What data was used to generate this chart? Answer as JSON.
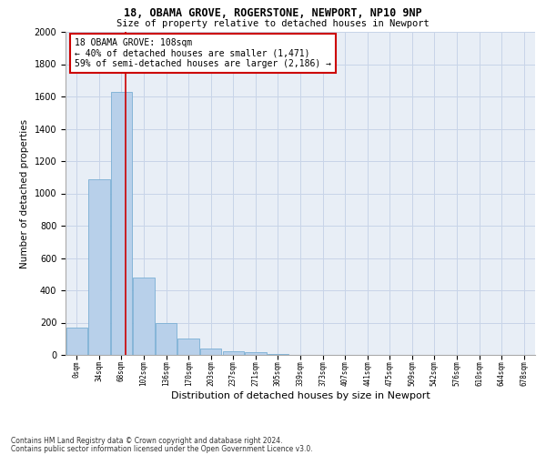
{
  "title1": "18, OBAMA GROVE, ROGERSTONE, NEWPORT, NP10 9NP",
  "title2": "Size of property relative to detached houses in Newport",
  "xlabel": "Distribution of detached houses by size in Newport",
  "ylabel": "Number of detached properties",
  "bar_labels": [
    "0sqm",
    "34sqm",
    "68sqm",
    "102sqm",
    "136sqm",
    "170sqm",
    "203sqm",
    "237sqm",
    "271sqm",
    "305sqm",
    "339sqm",
    "373sqm",
    "407sqm",
    "441sqm",
    "475sqm",
    "509sqm",
    "542sqm",
    "576sqm",
    "610sqm",
    "644sqm",
    "678sqm"
  ],
  "bar_heights": [
    170,
    1090,
    1630,
    480,
    200,
    100,
    40,
    25,
    15,
    5,
    2,
    0,
    0,
    0,
    0,
    0,
    0,
    0,
    0,
    0,
    0
  ],
  "bar_color": "#b8d0ea",
  "bar_edgecolor": "#7aafd4",
  "grid_color": "#c8d4e8",
  "background_color": "#e8eef6",
  "vline_x": 2.18,
  "vline_color": "#cc0000",
  "annotation_text": "18 OBAMA GROVE: 108sqm\n← 40% of detached houses are smaller (1,471)\n59% of semi-detached houses are larger (2,186) →",
  "annotation_box_color": "#cc0000",
  "footnote1": "Contains HM Land Registry data © Crown copyright and database right 2024.",
  "footnote2": "Contains public sector information licensed under the Open Government Licence v3.0.",
  "ylim": [
    0,
    2000
  ],
  "yticks": [
    0,
    200,
    400,
    600,
    800,
    1000,
    1200,
    1400,
    1600,
    1800,
    2000
  ]
}
